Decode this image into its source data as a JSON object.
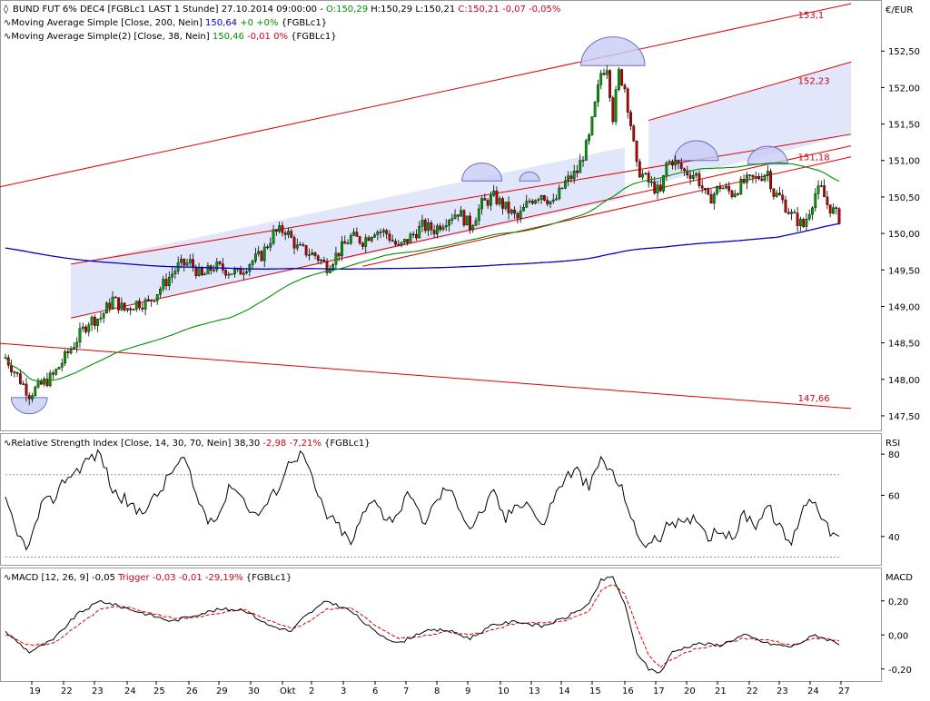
{
  "price_panel": {
    "title_text": "BUND FUT 6% DEC4 [FGBLc1 LAST 1 Stunde] 27.10.2014 09:00:00 - ",
    "ohlc_o": "O:150,29",
    "ohlc_h": " H:150,29",
    "ohlc_l": " L:150,21",
    "ohlc_c": " C:150,21",
    "ohlc_change": " -0,07 -0,05%",
    "ma200_text": "Moving Average Simple [Close, 200, Nein] ",
    "ma200_value": "150,64",
    "ma200_change": " +0 +0%",
    "ma200_suffix": " {FGBLc1}",
    "ma38_text": "Moving Average Simple(2) [Close, 38, Nein] ",
    "ma38_value": "150,46",
    "ma38_change": " -0,01 0%",
    "ma38_suffix": " {FGBLc1}",
    "unit_label": "€/EUR"
  },
  "rsi_panel": {
    "legend_text": "Relative Strength Index [Close, 14, 30, 70, Nein] 38,30 ",
    "legend_change": "-2,98 -7,21%",
    "legend_suffix": " {FGBLc1}",
    "axis_title": "RSI"
  },
  "macd_panel": {
    "legend_text": "MACD [12, 26, 9] -0,05 ",
    "legend_trigger": "Trigger -0,03 -0,01 -29,19%",
    "legend_suffix": " {FGBLc1}",
    "axis_title": "MACD"
  },
  "colors": {
    "candle_up": "#00a000",
    "candle_down": "#c00000",
    "ma200": "#0000cc",
    "ma38": "#009000",
    "channel_line": "#e00000",
    "channel_fill": "#e2e6fa",
    "pattern_fill": "#c8ccf4",
    "label_red": "#d0021b"
  },
  "chart_data": [
    {
      "type": "candlestick",
      "title": "BUND FUT 6% DEC4 [FGBLc1 LAST 1 Stunde]",
      "ylabel": "€/EUR",
      "ylim": [
        147.35,
        153.15
      ],
      "y_ticks": [
        "147,50",
        "148,00",
        "148,50",
        "149,00",
        "149,50",
        "150,00",
        "150,50",
        "151,00",
        "151,50",
        "152,00",
        "152,50"
      ],
      "x_ticks": [
        "19",
        "22",
        "23",
        "24",
        "25",
        "26",
        "29",
        "30",
        "Okt",
        "2",
        "3",
        "6",
        "7",
        "8",
        "9",
        "10",
        "13",
        "14",
        "15",
        "16",
        "17",
        "20",
        "21",
        "22",
        "23",
        "24",
        "27"
      ],
      "level_labels": [
        "153,1",
        "152,23",
        "151,18",
        "147,66"
      ],
      "last": {
        "open": 150.29,
        "high": 150.29,
        "low": 150.21,
        "close": 150.21
      },
      "close_path": [
        [
          0,
          148.3
        ],
        [
          4,
          147.8
        ],
        [
          8,
          148.05
        ],
        [
          12,
          148.55
        ],
        [
          14,
          148.8
        ],
        [
          16,
          148.85
        ],
        [
          18,
          149.1
        ],
        [
          20,
          148.95
        ],
        [
          22,
          149.05
        ],
        [
          24,
          149.05
        ],
        [
          27,
          149.35
        ],
        [
          29,
          149.55
        ],
        [
          31,
          149.6
        ],
        [
          33,
          149.4
        ],
        [
          35,
          149.55
        ],
        [
          37,
          149.5
        ],
        [
          39,
          149.45
        ],
        [
          41,
          149.6
        ],
        [
          43,
          149.7
        ],
        [
          45,
          150.0
        ],
        [
          47,
          150.05
        ],
        [
          49,
          149.8
        ],
        [
          52,
          149.7
        ],
        [
          54,
          149.55
        ],
        [
          56,
          149.75
        ],
        [
          58,
          149.95
        ],
        [
          60,
          149.9
        ],
        [
          62,
          150.05
        ],
        [
          64,
          150.0
        ],
        [
          66,
          149.8
        ],
        [
          68,
          149.95
        ],
        [
          70,
          150.1
        ],
        [
          72,
          150.05
        ],
        [
          74,
          150.2
        ],
        [
          76,
          150.3
        ],
        [
          78,
          150.1
        ],
        [
          80,
          150.4
        ],
        [
          82,
          150.5
        ],
        [
          84,
          150.35
        ],
        [
          86,
          150.2
        ],
        [
          88,
          150.45
        ],
        [
          90,
          150.55
        ],
        [
          92,
          150.4
        ],
        [
          94,
          150.7
        ],
        [
          96,
          150.85
        ],
        [
          98,
          151.3
        ],
        [
          100,
          152.2
        ],
        [
          101,
          152.3
        ],
        [
          102,
          151.6
        ],
        [
          103,
          152.2
        ],
        [
          104,
          152.0
        ],
        [
          105,
          151.5
        ],
        [
          106,
          150.9
        ],
        [
          108,
          150.7
        ],
        [
          110,
          150.55
        ],
        [
          111,
          150.95
        ],
        [
          112,
          151.0
        ],
        [
          114,
          150.85
        ],
        [
          116,
          150.8
        ],
        [
          118,
          150.45
        ],
        [
          120,
          150.65
        ],
        [
          122,
          150.55
        ],
        [
          124,
          150.7
        ],
        [
          126,
          150.75
        ],
        [
          128,
          150.85
        ],
        [
          129,
          150.55
        ],
        [
          130,
          150.5
        ],
        [
          132,
          150.25
        ],
        [
          134,
          150.1
        ],
        [
          136,
          150.55
        ],
        [
          137,
          150.6
        ],
        [
          138,
          150.4
        ],
        [
          140,
          150.21
        ]
      ],
      "series": [
        {
          "name": "Moving Average Simple [Close, 200, Nein]",
          "last": 150.64
        },
        {
          "name": "Moving Average Simple(2) [Close, 38, Nein]",
          "last": 150.46
        }
      ]
    },
    {
      "type": "line",
      "title": "Relative Strength Index [Close, 14, 30, 70, Nein]",
      "ylabel": "RSI",
      "ylim": [
        28,
        88
      ],
      "y_ticks": [
        "40",
        "60",
        "80"
      ],
      "reference_lines": [
        30,
        70
      ],
      "last": 38.3,
      "series": [
        {
          "name": "Relative Strength Index [Close, 14, 30, 70, Nein]",
          "values": [
            [
              0,
              57
            ],
            [
              2,
              40
            ],
            [
              4,
              35
            ],
            [
              6,
              55
            ],
            [
              8,
              58
            ],
            [
              10,
              68
            ],
            [
              12,
              72
            ],
            [
              14,
              78
            ],
            [
              16,
              80
            ],
            [
              18,
              62
            ],
            [
              20,
              58
            ],
            [
              22,
              52
            ],
            [
              24,
              55
            ],
            [
              26,
              62
            ],
            [
              28,
              72
            ],
            [
              30,
              78
            ],
            [
              32,
              60
            ],
            [
              34,
              48
            ],
            [
              36,
              52
            ],
            [
              38,
              66
            ],
            [
              40,
              58
            ],
            [
              42,
              50
            ],
            [
              44,
              56
            ],
            [
              46,
              65
            ],
            [
              48,
              78
            ],
            [
              50,
              80
            ],
            [
              52,
              63
            ],
            [
              54,
              50
            ],
            [
              56,
              45
            ],
            [
              58,
              36
            ],
            [
              60,
              50
            ],
            [
              62,
              60
            ],
            [
              64,
              47
            ],
            [
              66,
              52
            ],
            [
              68,
              62
            ],
            [
              70,
              46
            ],
            [
              72,
              55
            ],
            [
              74,
              64
            ],
            [
              76,
              56
            ],
            [
              78,
              44
            ],
            [
              80,
              52
            ],
            [
              82,
              61
            ],
            [
              84,
              48
            ],
            [
              86,
              57
            ],
            [
              88,
              56
            ],
            [
              90,
              44
            ],
            [
              92,
              58
            ],
            [
              94,
              69
            ],
            [
              96,
              72
            ],
            [
              98,
              63
            ],
            [
              100,
              78
            ],
            [
              102,
              70
            ],
            [
              104,
              60
            ],
            [
              106,
              40
            ],
            [
              108,
              36
            ],
            [
              110,
              40
            ],
            [
              112,
              48
            ],
            [
              114,
              45
            ],
            [
              116,
              50
            ],
            [
              118,
              40
            ],
            [
              120,
              44
            ],
            [
              122,
              38
            ],
            [
              124,
              51
            ],
            [
              126,
              46
            ],
            [
              128,
              55
            ],
            [
              130,
              44
            ],
            [
              132,
              36
            ],
            [
              134,
              56
            ],
            [
              136,
              58
            ],
            [
              138,
              44
            ],
            [
              140,
              38.3
            ]
          ]
        }
      ]
    },
    {
      "type": "line",
      "title": "MACD [12, 26, 9]",
      "ylabel": "MACD",
      "ylim": [
        -0.26,
        0.38
      ],
      "y_ticks": [
        "-0,20",
        "0,00",
        "0,20"
      ],
      "series": [
        {
          "name": "MACD [12, 26, 9]",
          "last": -0.05,
          "values": [
            [
              0,
              0.02
            ],
            [
              4,
              -0.1
            ],
            [
              8,
              -0.03
            ],
            [
              12,
              0.12
            ],
            [
              16,
              0.2
            ],
            [
              20,
              0.16
            ],
            [
              24,
              0.12
            ],
            [
              28,
              0.08
            ],
            [
              32,
              0.12
            ],
            [
              36,
              0.15
            ],
            [
              40,
              0.15
            ],
            [
              44,
              0.06
            ],
            [
              48,
              0.02
            ],
            [
              50,
              0.1
            ],
            [
              54,
              0.2
            ],
            [
              58,
              0.14
            ],
            [
              62,
              0.02
            ],
            [
              66,
              -0.05
            ],
            [
              70,
              0.02
            ],
            [
              74,
              0.03
            ],
            [
              78,
              -0.02
            ],
            [
              82,
              0.06
            ],
            [
              86,
              0.08
            ],
            [
              90,
              0.05
            ],
            [
              94,
              0.1
            ],
            [
              98,
              0.18
            ],
            [
              100,
              0.32
            ],
            [
              102,
              0.34
            ],
            [
              104,
              0.18
            ],
            [
              106,
              -0.1
            ],
            [
              108,
              -0.2
            ],
            [
              110,
              -0.22
            ],
            [
              112,
              -0.1
            ],
            [
              116,
              -0.05
            ],
            [
              120,
              -0.06
            ],
            [
              124,
              0.0
            ],
            [
              128,
              -0.05
            ],
            [
              132,
              -0.07
            ],
            [
              136,
              0.0
            ],
            [
              140,
              -0.05
            ]
          ]
        },
        {
          "name": "Trigger",
          "last": -0.03,
          "values": [
            [
              0,
              0.0
            ],
            [
              4,
              -0.06
            ],
            [
              8,
              -0.05
            ],
            [
              12,
              0.05
            ],
            [
              16,
              0.15
            ],
            [
              20,
              0.17
            ],
            [
              24,
              0.13
            ],
            [
              28,
              0.1
            ],
            [
              32,
              0.1
            ],
            [
              36,
              0.13
            ],
            [
              40,
              0.15
            ],
            [
              44,
              0.09
            ],
            [
              48,
              0.04
            ],
            [
              50,
              0.06
            ],
            [
              54,
              0.15
            ],
            [
              58,
              0.16
            ],
            [
              62,
              0.06
            ],
            [
              66,
              -0.02
            ],
            [
              70,
              -0.01
            ],
            [
              74,
              0.02
            ],
            [
              78,
              0.0
            ],
            [
              82,
              0.03
            ],
            [
              86,
              0.07
            ],
            [
              90,
              0.07
            ],
            [
              94,
              0.08
            ],
            [
              98,
              0.14
            ],
            [
              100,
              0.26
            ],
            [
              102,
              0.3
            ],
            [
              104,
              0.24
            ],
            [
              106,
              0.05
            ],
            [
              108,
              -0.12
            ],
            [
              110,
              -0.19
            ],
            [
              112,
              -0.14
            ],
            [
              116,
              -0.08
            ],
            [
              120,
              -0.06
            ],
            [
              124,
              -0.02
            ],
            [
              128,
              -0.03
            ],
            [
              132,
              -0.06
            ],
            [
              136,
              -0.02
            ],
            [
              140,
              -0.03
            ]
          ]
        }
      ]
    }
  ]
}
